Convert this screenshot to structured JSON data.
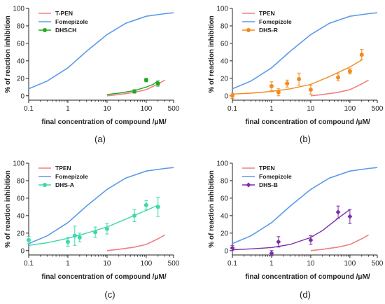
{
  "chart_data": [
    {
      "type": "line",
      "panel_label": "(a)",
      "xlabel": "final concentration of compound /μM/",
      "ylabel": "% of reaction inhibition",
      "xscale": "log",
      "xlim": [
        0.1,
        500
      ],
      "ylim": [
        -5,
        100
      ],
      "xticks": [
        "0.1",
        "1",
        "10",
        "100",
        "500"
      ],
      "yticks": [
        "0",
        "20",
        "40",
        "60",
        "80",
        "100"
      ],
      "legend_position": "top-left",
      "series": [
        {
          "name": "T-PEN",
          "color": "#f08080",
          "kind": "fit",
          "x": [
            10,
            20,
            50,
            100,
            200,
            300
          ],
          "y": [
            0,
            1.5,
            4,
            7,
            13.5,
            18
          ]
        },
        {
          "name": "Fomepizole",
          "color": "#5b9bea",
          "kind": "fit",
          "x": [
            0.1,
            0.3,
            1,
            3,
            10,
            30,
            100,
            300,
            500
          ],
          "y": [
            8,
            17,
            32,
            51,
            70,
            83,
            91,
            94,
            95
          ]
        },
        {
          "name": "DHSCH",
          "color": "#22aa22",
          "kind": "data+fit",
          "points": [
            {
              "x": 50,
              "y": 5,
              "err": 2
            },
            {
              "x": 100,
              "y": 18,
              "err": 2
            },
            {
              "x": 200,
              "y": 14,
              "err": 3
            }
          ],
          "fit_x": [
            10,
            20,
            50,
            100,
            150,
            200
          ],
          "fit_y": [
            1.5,
            3,
            6,
            10,
            13,
            17
          ]
        }
      ]
    },
    {
      "type": "line",
      "panel_label": "(b)",
      "xlabel": "final concentration of compound /μM/",
      "ylabel": "% of reaction inhibition",
      "xscale": "log",
      "xlim": [
        0.1,
        500
      ],
      "ylim": [
        -5,
        100
      ],
      "xticks": [
        "0.1",
        "1",
        "10",
        "100",
        "500"
      ],
      "yticks": [
        "0",
        "20",
        "40",
        "60",
        "80",
        "100"
      ],
      "legend_position": "top-left",
      "series": [
        {
          "name": "TPEN",
          "color": "#f08080",
          "kind": "fit",
          "x": [
            10,
            20,
            50,
            100,
            200,
            300
          ],
          "y": [
            0,
            1.5,
            4,
            7,
            13.5,
            18
          ]
        },
        {
          "name": "Fomepizole",
          "color": "#5b9bea",
          "kind": "fit",
          "x": [
            0.1,
            0.3,
            1,
            3,
            10,
            30,
            100,
            300,
            500
          ],
          "y": [
            8,
            17,
            32,
            51,
            70,
            83,
            91,
            94,
            95
          ]
        },
        {
          "name": "DHS-R",
          "color": "#f28a1e",
          "kind": "data+fit",
          "points": [
            {
              "x": 0.1,
              "y": 0,
              "err": 3
            },
            {
              "x": 1,
              "y": 11,
              "err": 5
            },
            {
              "x": 1.5,
              "y": 4,
              "err": 4
            },
            {
              "x": 2.5,
              "y": 14,
              "err": 4
            },
            {
              "x": 5,
              "y": 19,
              "err": 7
            },
            {
              "x": 10,
              "y": 7,
              "err": 5
            },
            {
              "x": 50,
              "y": 21,
              "err": 4
            },
            {
              "x": 100,
              "y": 28,
              "err": 3
            },
            {
              "x": 200,
              "y": 47,
              "err": 6
            }
          ],
          "fit_x": [
            0.1,
            0.3,
            1,
            3,
            10,
            30,
            100,
            200
          ],
          "fit_y": [
            2,
            3,
            5,
            8,
            13,
            22,
            33,
            41
          ]
        }
      ]
    },
    {
      "type": "line",
      "panel_label": "(c)",
      "xlabel": "final concentration of compound /μM/",
      "ylabel": "% of reaction inhibition",
      "xscale": "log",
      "xlim": [
        0.1,
        500
      ],
      "ylim": [
        -5,
        100
      ],
      "xticks": [
        "0.1",
        "1",
        "10",
        "100",
        "500"
      ],
      "yticks": [
        "0",
        "20",
        "40",
        "60",
        "80",
        "100"
      ],
      "legend_position": "top-left",
      "series": [
        {
          "name": "TPEN",
          "color": "#f08080",
          "kind": "fit",
          "x": [
            10,
            20,
            50,
            100,
            200,
            300
          ],
          "y": [
            0,
            1.5,
            4,
            7,
            13.5,
            18
          ]
        },
        {
          "name": "Fomepizole",
          "color": "#5b9bea",
          "kind": "fit",
          "x": [
            0.1,
            0.3,
            1,
            3,
            10,
            30,
            100,
            300,
            500
          ],
          "y": [
            8,
            17,
            32,
            51,
            70,
            83,
            91,
            94,
            95
          ]
        },
        {
          "name": "DHS-A",
          "color": "#3dd9a8",
          "kind": "data+fit",
          "points": [
            {
              "x": 0.1,
              "y": 12,
              "err": 4
            },
            {
              "x": 1,
              "y": 10,
              "err": 5
            },
            {
              "x": 1.5,
              "y": 17,
              "err": 11
            },
            {
              "x": 2,
              "y": 15,
              "err": 5
            },
            {
              "x": 5,
              "y": 21,
              "err": 6
            },
            {
              "x": 10,
              "y": 25,
              "err": 6
            },
            {
              "x": 50,
              "y": 40,
              "err": 7
            },
            {
              "x": 100,
              "y": 52,
              "err": 5
            },
            {
              "x": 200,
              "y": 50,
              "err": 11
            }
          ],
          "fit_x": [
            0.1,
            0.3,
            1,
            3,
            10,
            30,
            100,
            200
          ],
          "fit_y": [
            6,
            9,
            14,
            20,
            27,
            36,
            46,
            52
          ]
        }
      ]
    },
    {
      "type": "line",
      "panel_label": "(d)",
      "xlabel": "final concentration of compound /μM/",
      "ylabel": "% of reaction inhibition",
      "xscale": "log",
      "xlim": [
        0.1,
        500
      ],
      "ylim": [
        -5,
        100
      ],
      "xticks": [
        "0.1",
        "1",
        "10",
        "100",
        "500"
      ],
      "yticks": [
        "0",
        "20",
        "40",
        "60",
        "80",
        "100"
      ],
      "legend_position": "top-left",
      "series": [
        {
          "name": "TPEN",
          "color": "#f08080",
          "kind": "fit",
          "x": [
            10,
            20,
            50,
            100,
            200,
            300
          ],
          "y": [
            0,
            1.5,
            4,
            7,
            13.5,
            18
          ]
        },
        {
          "name": "Fomepizole",
          "color": "#5b9bea",
          "kind": "fit",
          "x": [
            0.1,
            0.3,
            1,
            3,
            10,
            30,
            100,
            300,
            500
          ],
          "y": [
            8,
            17,
            32,
            51,
            70,
            83,
            91,
            94,
            95
          ]
        },
        {
          "name": "DHS-B",
          "color": "#7b2fa8",
          "kind": "data+fit",
          "points": [
            {
              "x": 0.1,
              "y": 3,
              "err": 3
            },
            {
              "x": 1,
              "y": -3,
              "err": 3
            },
            {
              "x": 1.5,
              "y": 10,
              "err": 6
            },
            {
              "x": 10,
              "y": 12,
              "err": 5
            },
            {
              "x": 50,
              "y": 44,
              "err": 7
            },
            {
              "x": 100,
              "y": 39,
              "err": 8
            }
          ],
          "fit_x": [
            0.1,
            0.3,
            1,
            3,
            10,
            20,
            50,
            100
          ],
          "fit_y": [
            1,
            2,
            3.5,
            7,
            15,
            23,
            37,
            47
          ]
        }
      ]
    }
  ]
}
